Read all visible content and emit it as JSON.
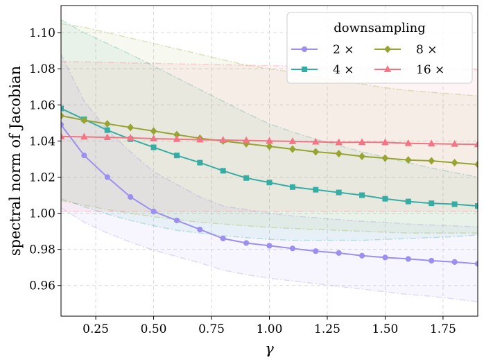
{
  "chart_data": {
    "type": "line",
    "title": "",
    "xlabel": "γ",
    "ylabel": "spectral norm of Jacobian",
    "xlim": [
      0.1,
      1.9
    ],
    "ylim": [
      0.943,
      1.115
    ],
    "grid": true,
    "legend_title": "downsampling",
    "legend_position": "top-right",
    "x_ticks": [
      0.25,
      0.5,
      0.75,
      1.0,
      1.25,
      1.5,
      1.75
    ],
    "x_tick_labels": [
      "0.25",
      "0.50",
      "0.75",
      "1.00",
      "1.25",
      "1.50",
      "1.75"
    ],
    "y_ticks": [
      0.96,
      0.98,
      1.0,
      1.02,
      1.04,
      1.06,
      1.08,
      1.1
    ],
    "y_tick_labels": [
      "0.96",
      "0.98",
      "1.00",
      "1.02",
      "1.04",
      "1.06",
      "1.08",
      "1.10"
    ],
    "x": [
      0.1,
      0.2,
      0.3,
      0.4,
      0.5,
      0.6,
      0.7,
      0.8,
      0.9,
      1.0,
      1.1,
      1.2,
      1.3,
      1.4,
      1.5,
      1.6,
      1.7,
      1.8,
      1.9
    ],
    "series": [
      {
        "name": "2 ×",
        "color": "#9b8ff0",
        "marker": "circle",
        "values": [
          1.049,
          1.032,
          1.02,
          1.009,
          1.001,
          0.996,
          0.991,
          0.986,
          0.9835,
          0.982,
          0.9805,
          0.979,
          0.978,
          0.9765,
          0.9755,
          0.9747,
          0.9737,
          0.973,
          0.972
        ],
        "band_upper": [
          1.088,
          1.062,
          1.046,
          1.034,
          1.023,
          1.016,
          1.009,
          1.004,
          1.002,
          1.0,
          0.9985,
          0.9975,
          0.9965,
          0.9955,
          0.995,
          0.994,
          0.9935,
          0.993,
          0.9925
        ],
        "band_lower": [
          1.003,
          0.995,
          0.989,
          0.984,
          0.9795,
          0.976,
          0.9725,
          0.9685,
          0.966,
          0.964,
          0.9625,
          0.961,
          0.9595,
          0.958,
          0.9565,
          0.955,
          0.954,
          0.9525,
          0.951
        ]
      },
      {
        "name": "4 ×",
        "color": "#36ada4",
        "marker": "square",
        "values": [
          1.058,
          1.052,
          1.046,
          1.041,
          1.0365,
          1.032,
          1.028,
          1.0235,
          1.0195,
          1.017,
          1.0145,
          1.013,
          1.0115,
          1.01,
          1.008,
          1.0065,
          1.0055,
          1.005,
          1.004
        ],
        "band_upper": [
          1.107,
          1.1,
          1.094,
          1.088,
          1.0815,
          1.075,
          1.0685,
          1.062,
          1.0555,
          1.0495,
          1.045,
          1.041,
          1.0375,
          1.034,
          1.031,
          1.028,
          1.025,
          1.0225,
          1.02
        ],
        "band_lower": [
          1.008,
          1.0035,
          0.9995,
          0.996,
          0.993,
          0.9905,
          0.989,
          0.9875,
          0.9865,
          0.9855,
          0.985,
          0.985,
          0.985,
          0.985,
          0.9855,
          0.986,
          0.9865,
          0.987,
          0.988
        ]
      },
      {
        "name": "8 ×",
        "color": "#97a431",
        "marker": "diamond",
        "values": [
          1.054,
          1.0515,
          1.0495,
          1.0475,
          1.0455,
          1.0435,
          1.0415,
          1.04,
          1.0385,
          1.037,
          1.0355,
          1.034,
          1.033,
          1.0315,
          1.0305,
          1.0295,
          1.029,
          1.028,
          1.027
        ],
        "band_upper": [
          1.105,
          1.103,
          1.1,
          1.097,
          1.094,
          1.091,
          1.088,
          1.085,
          1.082,
          1.08,
          1.078,
          1.0755,
          1.0735,
          1.0715,
          1.0695,
          1.068,
          1.067,
          1.066,
          1.065
        ],
        "band_lower": [
          1.007,
          1.0045,
          1.002,
          1.0,
          0.998,
          0.9965,
          0.995,
          0.994,
          0.993,
          0.9922,
          0.9915,
          0.991,
          0.9905,
          0.99,
          0.9895,
          0.989,
          0.989,
          0.989,
          0.989
        ]
      },
      {
        "name": "16 ×",
        "color": "#f37484",
        "marker": "triangle",
        "values": [
          1.0425,
          1.0423,
          1.042,
          1.0417,
          1.0413,
          1.041,
          1.0407,
          1.0405,
          1.0403,
          1.04,
          1.0398,
          1.0395,
          1.0392,
          1.0393,
          1.0392,
          1.0387,
          1.0385,
          1.0383,
          1.0381
        ],
        "band_upper": [
          1.084,
          1.0838,
          1.0835,
          1.0832,
          1.083,
          1.0827,
          1.0825,
          1.0822,
          1.082,
          1.0817,
          1.0815,
          1.0812,
          1.081,
          1.0807,
          1.0805,
          1.0802,
          1.08,
          1.0797,
          1.0795
        ],
        "band_lower": [
          1.001,
          1.001,
          1.001,
          1.001,
          1.001,
          1.001,
          1.001,
          1.001,
          1.001,
          1.001,
          1.001,
          1.001,
          1.001,
          1.001,
          1.001,
          1.001,
          1.001,
          1.001,
          1.001
        ]
      }
    ]
  }
}
